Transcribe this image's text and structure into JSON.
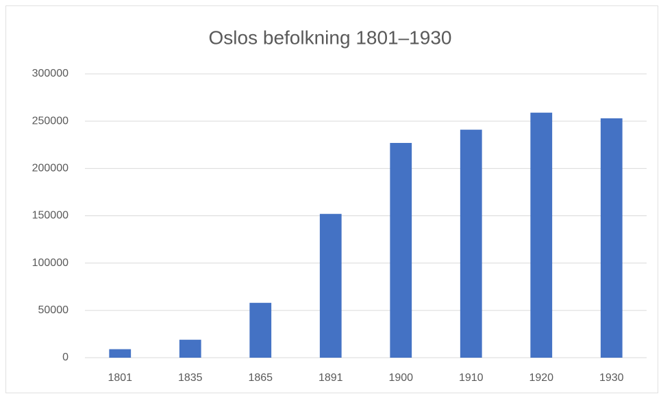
{
  "chart_data": {
    "type": "bar",
    "title": "Oslos befolkning 1801–1930",
    "categories": [
      "1801",
      "1835",
      "1865",
      "1891",
      "1900",
      "1910",
      "1920",
      "1930"
    ],
    "values": [
      9000,
      19000,
      58000,
      152000,
      227000,
      241000,
      259000,
      253000
    ],
    "color": "#4472c4",
    "ylim": [
      0,
      300000
    ],
    "yticks": [
      0,
      50000,
      100000,
      150000,
      200000,
      250000,
      300000
    ],
    "grid": true
  }
}
